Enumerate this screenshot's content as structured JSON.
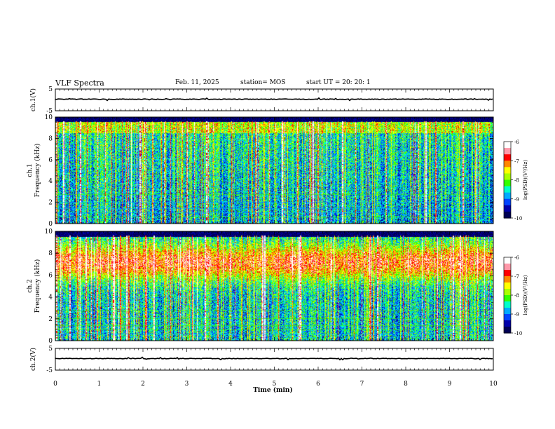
{
  "header": {
    "title": "VLF Spectra",
    "date": "Feb. 11, 2025",
    "station": "station= MOS",
    "start": "start  UT  =   20: 20: 1"
  },
  "colors": {
    "palette": [
      "#000055",
      "#0000aa",
      "#0044ff",
      "#00aaff",
      "#00ffcc",
      "#33ff00",
      "#aaff00",
      "#ffff00",
      "#ff8800",
      "#ff0000",
      "#ff99aa",
      "#ffffff"
    ]
  },
  "chart_data": [
    {
      "type": "line",
      "panel": "ch1-waveform",
      "ylabel": "ch.1(V)",
      "ylim": [
        -5,
        5
      ],
      "yticks": [
        "5",
        "-5"
      ],
      "xlim": [
        0,
        10
      ]
    },
    {
      "type": "heatmap",
      "panel": "ch1-spectrogram",
      "ylabel": "ch.1\nFrequency (kHz)",
      "ylim": [
        0,
        10
      ],
      "yticks": [
        "0",
        "2",
        "4",
        "6",
        "8",
        "10"
      ],
      "xlim": [
        0,
        10
      ],
      "colorbar": {
        "label": "log(PSD)(V²/Hz)",
        "range": [
          -10,
          -6
        ],
        "ticks": [
          "-6",
          "-7",
          "-8",
          "-9",
          "-10"
        ]
      }
    },
    {
      "type": "heatmap",
      "panel": "ch2-spectrogram",
      "ylabel": "ch.2\nFrequency (kHz)",
      "ylim": [
        0,
        10
      ],
      "yticks": [
        "0",
        "2",
        "4",
        "6",
        "8",
        "10"
      ],
      "xlim": [
        0,
        10
      ],
      "colorbar": {
        "label": "log(PSD)(V²/Hz)",
        "range": [
          -10,
          -6
        ],
        "ticks": [
          "-6",
          "-7",
          "-8",
          "-9",
          "-10"
        ]
      }
    },
    {
      "type": "line",
      "panel": "ch2-waveform",
      "ylabel": "ch.2(V)",
      "ylim": [
        -5,
        5
      ],
      "yticks": [
        "5",
        "-5"
      ],
      "xlim": [
        0,
        10
      ],
      "xlabel": "Time  (min)",
      "xticks": [
        "0",
        "1",
        "2",
        "3",
        "4",
        "5",
        "6",
        "7",
        "8",
        "9",
        "10"
      ]
    }
  ]
}
